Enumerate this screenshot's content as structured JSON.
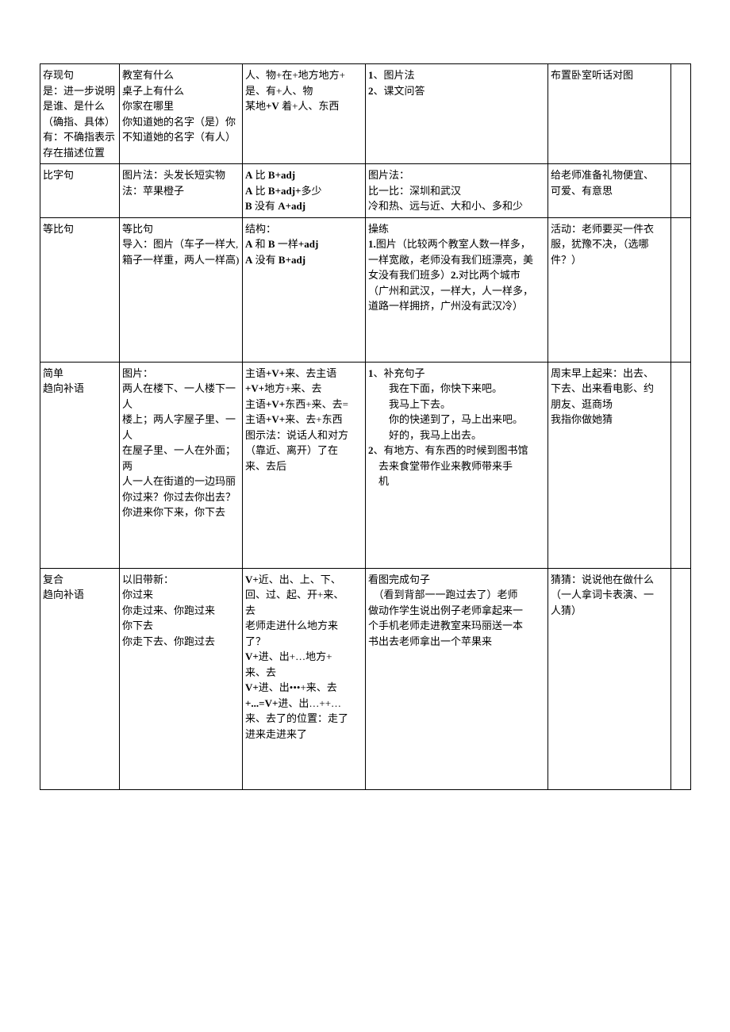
{
  "rows": [
    {
      "c1": "存现句\n是：进一步说明\n是谁、是什么\n（确指、具体）\n有：不确指表示\n存在描述位置",
      "c1_prefix": "",
      "c2": "教室有什么\n桌子上有什么\n你家在哪里\n你知道她的名字（是）你\n不知道她的名字（有人）",
      "c3_lines": [
        {
          "t": "人、物+在+地方地方+",
          "b": false
        },
        {
          "t": "是、有+人、物",
          "b": false
        },
        {
          "t": "某地+V 着+人、东西",
          "b": false,
          "mid_bold": "+V"
        }
      ],
      "c4_lines": [
        {
          "t": "1、图片法",
          "b": false,
          "lead_bold": "1"
        },
        {
          "t": "2、课文问答",
          "b": false,
          "lead_bold": "2"
        }
      ],
      "c5": "布置卧室听话对图"
    },
    {
      "c1": "比字句",
      "c2": "图片法：头发长短实物\n法：苹果橙子",
      "c3_lines": [
        {
          "t": "A 比 B+adj",
          "b": false,
          "bold_parts": [
            "A",
            "B+adj"
          ]
        },
        {
          "t": "A 比 B+adj+多少",
          "b": false,
          "bold_parts": [
            "A",
            "B+adj+"
          ]
        },
        {
          "t": "B 没有 A+adj",
          "b": false,
          "bold_parts": [
            "B",
            "A+adj"
          ]
        }
      ],
      "c4_lines": [
        {
          "t": "图片法：",
          "b": false
        },
        {
          "t": "比一比：深圳和武汉",
          "b": false
        },
        {
          "t": "冷和热、远与近、大和小、多和少",
          "b": false
        }
      ],
      "c5": "给老师准备礼物便宜、\n可爱、有意思"
    },
    {
      "c1": "等比句",
      "c2": "等比句\n导入：图片（车子一样大,\n箱子一样重，两人一样高)",
      "c3_lines": [
        {
          "t": "结构：",
          "b": false
        },
        {
          "t": "A 和 B 一样+adj",
          "b": false,
          "bold_parts": [
            "A",
            "B",
            "+adj"
          ]
        },
        {
          "t": "A 没有 B+adj",
          "b": false,
          "bold_parts": [
            "A",
            "B+adj"
          ]
        }
      ],
      "c4_lines": [
        {
          "t": "操练",
          "b": false
        },
        {
          "t": "1.图片（比较两个教室人数一样多，",
          "b": false,
          "lead_bold": "1."
        },
        {
          "t": "一样宽敞，老师没有我们班漂亮，美",
          "b": false
        },
        {
          "t": "女没有我们班多）2.对比两个城市",
          "b": false,
          "mid_bold": "2."
        },
        {
          "t": "（广州和武汉，一样大，人一样多，",
          "b": false
        },
        {
          "t": "道路一样拥挤，广州没有武汉冷）",
          "b": false
        }
      ],
      "c5": "活动：老师要买一件衣\n服，犹豫不决，（选哪\n件？）",
      "tall": true
    },
    {
      "c1": "简单\n趋向补语",
      "c2": "图片：\n两人在楼下、一人楼下一人\n楼上；两人字屋子里、一人\n在屋子里、一人在外面；两\n人一人在街道的一边玛丽\n你过来？你过去你出去？\n你进来你下来，你下去",
      "c3_lines": [
        {
          "t": "主语+V+来、去主语",
          "b": false,
          "bold_parts": [
            "+V+"
          ]
        },
        {
          "t": "+V+地方+来、去",
          "b": false,
          "bold_parts": [
            "+V+"
          ]
        },
        {
          "t": "主语+V+东西+来、去=",
          "b": false,
          "bold_parts": [
            "+V+"
          ]
        },
        {
          "t": "主语+V+来、去+东西",
          "b": false,
          "bold_parts": [
            "+V+"
          ]
        },
        {
          "t": "图示法：说话人和对方",
          "b": false
        },
        {
          "t": "（靠近、离开）了在",
          "b": false
        },
        {
          "t": "来、去后",
          "b": false
        }
      ],
      "c4_lines": [
        {
          "t": "1、补充句子",
          "b": false,
          "lead_bold": "1"
        },
        {
          "t": "　　我在下面，你快下来吧。",
          "b": false
        },
        {
          "t": "　　我马上下去。",
          "b": false
        },
        {
          "t": "　　你的快递到了，马上出来吧。",
          "b": false
        },
        {
          "t": "　　好的，我马上出去。",
          "b": false
        },
        {
          "t": "2、有地方、有东西的时候到图书馆",
          "b": false,
          "lead_bold": "2"
        },
        {
          "t": "　去来食堂带作业来教师带来手",
          "b": false
        },
        {
          "t": "　机",
          "b": false
        }
      ],
      "c5": "周末早上起来：出去、\n下去、出来看电影、约\n朋友、逛商场\n我指你做她猜",
      "tall": true
    },
    {
      "c1": "复合\n趋向补语",
      "c2": "以旧带新：\n你过来\n你走过来、你跑过来\n你下去\n你走下去、你跑过去",
      "c3_lines": [
        {
          "t": "V+近、出、上、下、",
          "b": false,
          "bold_parts": [
            "V+"
          ]
        },
        {
          "t": "回、过、起、开+来、",
          "b": false
        },
        {
          "t": "去",
          "b": false
        },
        {
          "t": "老师走进什么地方来",
          "b": false
        },
        {
          "t": "了？",
          "b": false
        },
        {
          "t": "V+进、出+…地方+",
          "b": false,
          "bold_parts": [
            "V+"
          ]
        },
        {
          "t": "来、去",
          "b": false
        },
        {
          "t": "V+进、出•••+来、去",
          "b": false,
          "bold_parts": [
            "V+"
          ]
        },
        {
          "t": "+...=V+进、出…++…",
          "b": false,
          "bold_parts": [
            "+...=V+"
          ]
        },
        {
          "t": "来、去了的位置：走了",
          "b": false
        },
        {
          "t": "进来走进来了",
          "b": false
        }
      ],
      "c4_lines": [
        {
          "t": "看图完成句子",
          "b": false
        },
        {
          "t": "　（看到背部一一跑过去了）老师",
          "b": false
        },
        {
          "t": "做动作学生说出例子老师拿起来一",
          "b": false
        },
        {
          "t": "个手机老师走进教室来玛丽送一本",
          "b": false
        },
        {
          "t": "书出去老师拿出一个苹果来",
          "b": false
        }
      ],
      "c5": "猜猜：说说他在做什么\n（一人拿词卡表演、一\n人猜）",
      "tall": true
    }
  ]
}
